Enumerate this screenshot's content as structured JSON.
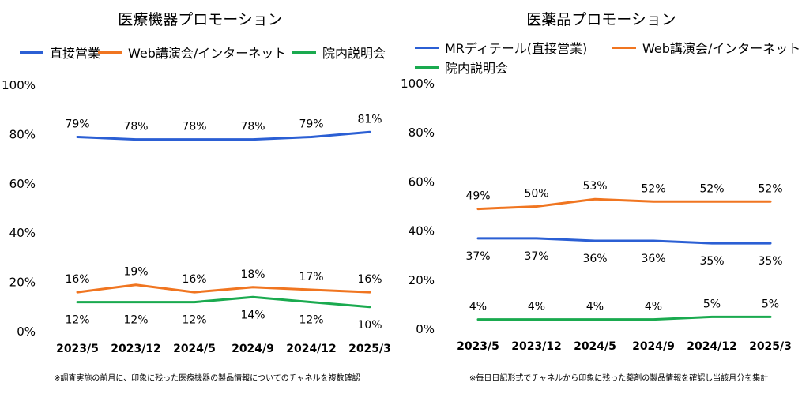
{
  "chart_data": [
    {
      "type": "line",
      "title": "医療機器プロモーション",
      "categories": [
        "2023/5",
        "2023/12",
        "2024/5",
        "2024/9",
        "2024/12",
        "2025/3"
      ],
      "ylim": [
        0,
        100
      ],
      "yticks": [
        "0%",
        "20%",
        "40%",
        "60%",
        "80%",
        "100%"
      ],
      "grid": false,
      "legend_position": "top",
      "series": [
        {
          "name": "直接営業",
          "color": "#2b5fd4",
          "values": [
            79,
            78,
            78,
            78,
            79,
            81
          ],
          "labels": [
            "79%",
            "78%",
            "78%",
            "78%",
            "79%",
            "81%"
          ],
          "label_pos": "above"
        },
        {
          "name": "Web講演会/インターネット",
          "color": "#f07520",
          "values": [
            16,
            19,
            16,
            18,
            17,
            16
          ],
          "labels": [
            "16%",
            "19%",
            "16%",
            "18%",
            "17%",
            "16%"
          ],
          "label_pos": "above"
        },
        {
          "name": "院内説明会",
          "color": "#1aaa4f",
          "values": [
            12,
            12,
            12,
            14,
            12,
            10
          ],
          "labels": [
            "12%",
            "12%",
            "12%",
            "14%",
            "12%",
            "10%"
          ],
          "label_pos": "below"
        }
      ],
      "note": "※調査実施の前月に、印象に残った医療機器の製品情報についてのチャネルを複数確認"
    },
    {
      "type": "line",
      "title": "医薬品プロモーション",
      "categories": [
        "2023/5",
        "2023/12",
        "2024/5",
        "2024/9",
        "2024/12",
        "2025/3"
      ],
      "ylim": [
        0,
        100
      ],
      "yticks": [
        "0%",
        "20%",
        "40%",
        "60%",
        "80%",
        "100%"
      ],
      "grid": false,
      "legend_position": "top",
      "series": [
        {
          "name": "MRディテール(直接営業)",
          "color": "#2b5fd4",
          "values": [
            37,
            37,
            36,
            36,
            35,
            35
          ],
          "labels": [
            "37%",
            "37%",
            "36%",
            "36%",
            "35%",
            "35%"
          ],
          "label_pos": "below"
        },
        {
          "name": "Web講演会/インターネット",
          "color": "#f07520",
          "values": [
            49,
            50,
            53,
            52,
            52,
            52
          ],
          "labels": [
            "49%",
            "50%",
            "53%",
            "52%",
            "52%",
            "52%"
          ],
          "label_pos": "above"
        },
        {
          "name": "院内説明会",
          "color": "#1aaa4f",
          "values": [
            4,
            4,
            4,
            4,
            5,
            5
          ],
          "labels": [
            "4%",
            "4%",
            "4%",
            "4%",
            "5%",
            "5%"
          ],
          "label_pos": "above"
        }
      ],
      "note": "※毎日日記形式でチャネルから印象に残った薬剤の製品情報を確認し当該月分を集計"
    }
  ]
}
